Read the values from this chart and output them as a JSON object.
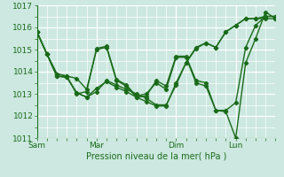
{
  "xlabel": "Pression niveau de la mer( hPa )",
  "bg_color": "#cce8e0",
  "grid_color": "#ffffff",
  "line_color": "#1a6b1a",
  "ylim": [
    1011,
    1017
  ],
  "yticks": [
    1011,
    1012,
    1013,
    1014,
    1015,
    1016,
    1017
  ],
  "xtick_labels": [
    "Sam",
    "Mar",
    "Dim",
    "Lun"
  ],
  "xtick_positions": [
    0,
    30,
    70,
    100
  ],
  "total_points": 120,
  "series": [
    [
      0,
      1015.8,
      5,
      1014.8,
      10,
      1013.9,
      15,
      1013.8,
      20,
      1013.7,
      25,
      1013.2,
      30,
      1015.0,
      35,
      1015.1,
      40,
      1013.6,
      45,
      1013.35,
      50,
      1012.85,
      55,
      1012.9,
      60,
      1013.6,
      65,
      1013.35,
      70,
      1014.7,
      75,
      1014.7,
      80,
      1013.6,
      85,
      1013.5,
      90,
      1012.25,
      95,
      1012.25,
      100,
      1012.6,
      105,
      1015.1,
      110,
      1016.1,
      115,
      1016.5,
      120,
      1016.5
    ],
    [
      0,
      1015.8,
      5,
      1014.8,
      10,
      1013.9,
      15,
      1013.8,
      20,
      1013.0,
      25,
      1013.1,
      30,
      1015.05,
      35,
      1015.15,
      40,
      1013.65,
      45,
      1013.4,
      50,
      1012.9,
      55,
      1013.0,
      60,
      1013.5,
      65,
      1013.2,
      70,
      1014.65,
      75,
      1014.65,
      80,
      1013.5,
      85,
      1013.35,
      90,
      1012.25,
      95,
      1012.2,
      100,
      1011.0,
      105,
      1014.4,
      110,
      1015.5,
      115,
      1016.7,
      120,
      1016.4
    ],
    [
      0,
      1015.8,
      5,
      1014.8,
      10,
      1013.8,
      15,
      1013.75,
      20,
      1013.05,
      25,
      1012.85,
      30,
      1013.1,
      35,
      1013.6,
      40,
      1013.4,
      45,
      1013.2,
      50,
      1013.0,
      55,
      1012.8,
      60,
      1012.5,
      65,
      1012.5,
      70,
      1013.4,
      75,
      1014.4,
      80,
      1015.1,
      85,
      1015.3,
      90,
      1015.1,
      95,
      1015.8,
      100,
      1016.1,
      105,
      1016.4,
      110,
      1016.4,
      115,
      1016.4,
      120,
      1016.4
    ],
    [
      0,
      1015.8,
      5,
      1014.8,
      10,
      1013.8,
      15,
      1013.75,
      20,
      1013.05,
      25,
      1012.85,
      30,
      1013.25,
      35,
      1013.55,
      40,
      1013.3,
      45,
      1013.1,
      50,
      1012.85,
      55,
      1012.65,
      60,
      1012.45,
      65,
      1012.45,
      70,
      1013.5,
      75,
      1014.4,
      80,
      1015.05,
      85,
      1015.3,
      90,
      1015.1,
      95,
      1015.8,
      100,
      1016.1,
      105,
      1016.4,
      110,
      1016.4,
      115,
      1016.5,
      120,
      1016.5
    ]
  ]
}
